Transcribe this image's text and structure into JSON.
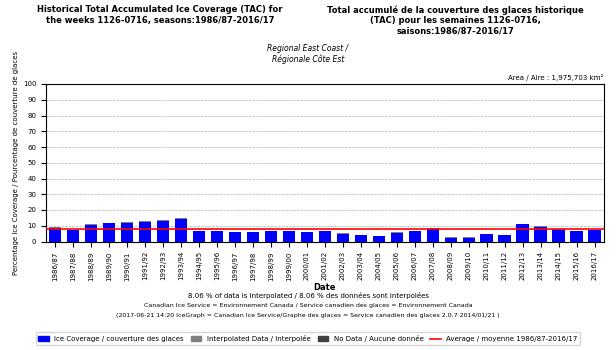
{
  "chart_data": {
    "type": "bar",
    "stacked": true,
    "title": "Historical Total Accumulated Ice Coverage (TAC) for\nthe weeks 1126-0716, seasons:1986/87-2016/17",
    "subtitle": "Regional East Coast /\nRégionale Côte Est",
    "annotations": [
      "Total accumulé de la couverture des glaces historique\n(TAC) pour les semaines 1126-0716,\nsaisons:1986/87-2016/17",
      "Area / Aire : 1,975,703 km²",
      "8.06 % of data is interpolated / 8.06 % des données sont interpolées",
      "Canadian Ice Service = Environnement Canada / Service canadien des glaces = Environnement Canada",
      "(2017-06-21 14:20 IceGraph = Canadian Ice Service/Graphe des glaces = Service canadien des glaces 2.0.7 2014/01/21 )"
    ],
    "x_label": "Date",
    "y_label": "Percentage Ice Coverage / Pourcentage de couverture de glaces",
    "categories": [
      "1986/87",
      "1987/88",
      "1988/89",
      "1989/90",
      "1990/91",
      "1991/92",
      "1992/93",
      "1993/94",
      "1994/95",
      "1995/96",
      "1996/97",
      "1997/98",
      "1998/99",
      "1999/00",
      "2000/01",
      "2001/02",
      "2002/03",
      "2003/04",
      "2004/05",
      "2005/06",
      "2006/07",
      "2007/08",
      "2008/09",
      "2009/10",
      "2010/11",
      "2011/12",
      "2012/13",
      "2013/14",
      "2014/15",
      "2015/16",
      "2016/17"
    ],
    "series": [
      {
        "name": "Ice Coverage / couverture des glaces",
        "color": "#0000FF",
        "values": [
          8.5,
          7.0,
          10.5,
          11.5,
          12.0,
          12.5,
          13.0,
          14.0,
          6.5,
          6.5,
          6.0,
          6.0,
          6.5,
          6.5,
          6.0,
          6.5,
          5.0,
          4.0,
          3.5,
          5.5,
          6.5,
          8.0,
          2.5,
          2.5,
          4.5,
          4.0,
          11.0,
          9.5,
          7.5,
          6.5,
          7.0
        ]
      },
      {
        "name": "Interpolated Data / Interpolée",
        "color": "#808080",
        "values": [
          0.5,
          0.5,
          0.5,
          0.5,
          0.5,
          0.5,
          0.5,
          1.0,
          0.3,
          0.3,
          0.3,
          0.3,
          0.3,
          0.3,
          0.3,
          0.3,
          0.3,
          0.3,
          0.3,
          0.3,
          0.3,
          0.3,
          0.3,
          0.3,
          0.3,
          0.3,
          0.3,
          0.3,
          0.3,
          0.3,
          0.3
        ]
      },
      {
        "name": "No Data / Aucune donnée",
        "color": "#404040",
        "values": [
          0,
          0,
          0,
          0,
          0,
          0,
          0,
          0,
          0,
          0,
          0,
          0,
          0,
          0,
          0,
          0,
          0,
          0,
          0,
          0,
          0,
          0,
          0,
          0,
          0,
          0,
          0,
          0,
          0,
          0,
          0
        ]
      },
      {
        "name": "Average / moyenne 1986/87-2016/17",
        "type": "hline",
        "color": "#FF0000",
        "value": 8.06
      }
    ],
    "ylim": [
      0,
      100
    ],
    "yticks": [
      0,
      10,
      20,
      30,
      40,
      50,
      60,
      70,
      80,
      90,
      100
    ],
    "grid": true,
    "legend": "lower center"
  }
}
